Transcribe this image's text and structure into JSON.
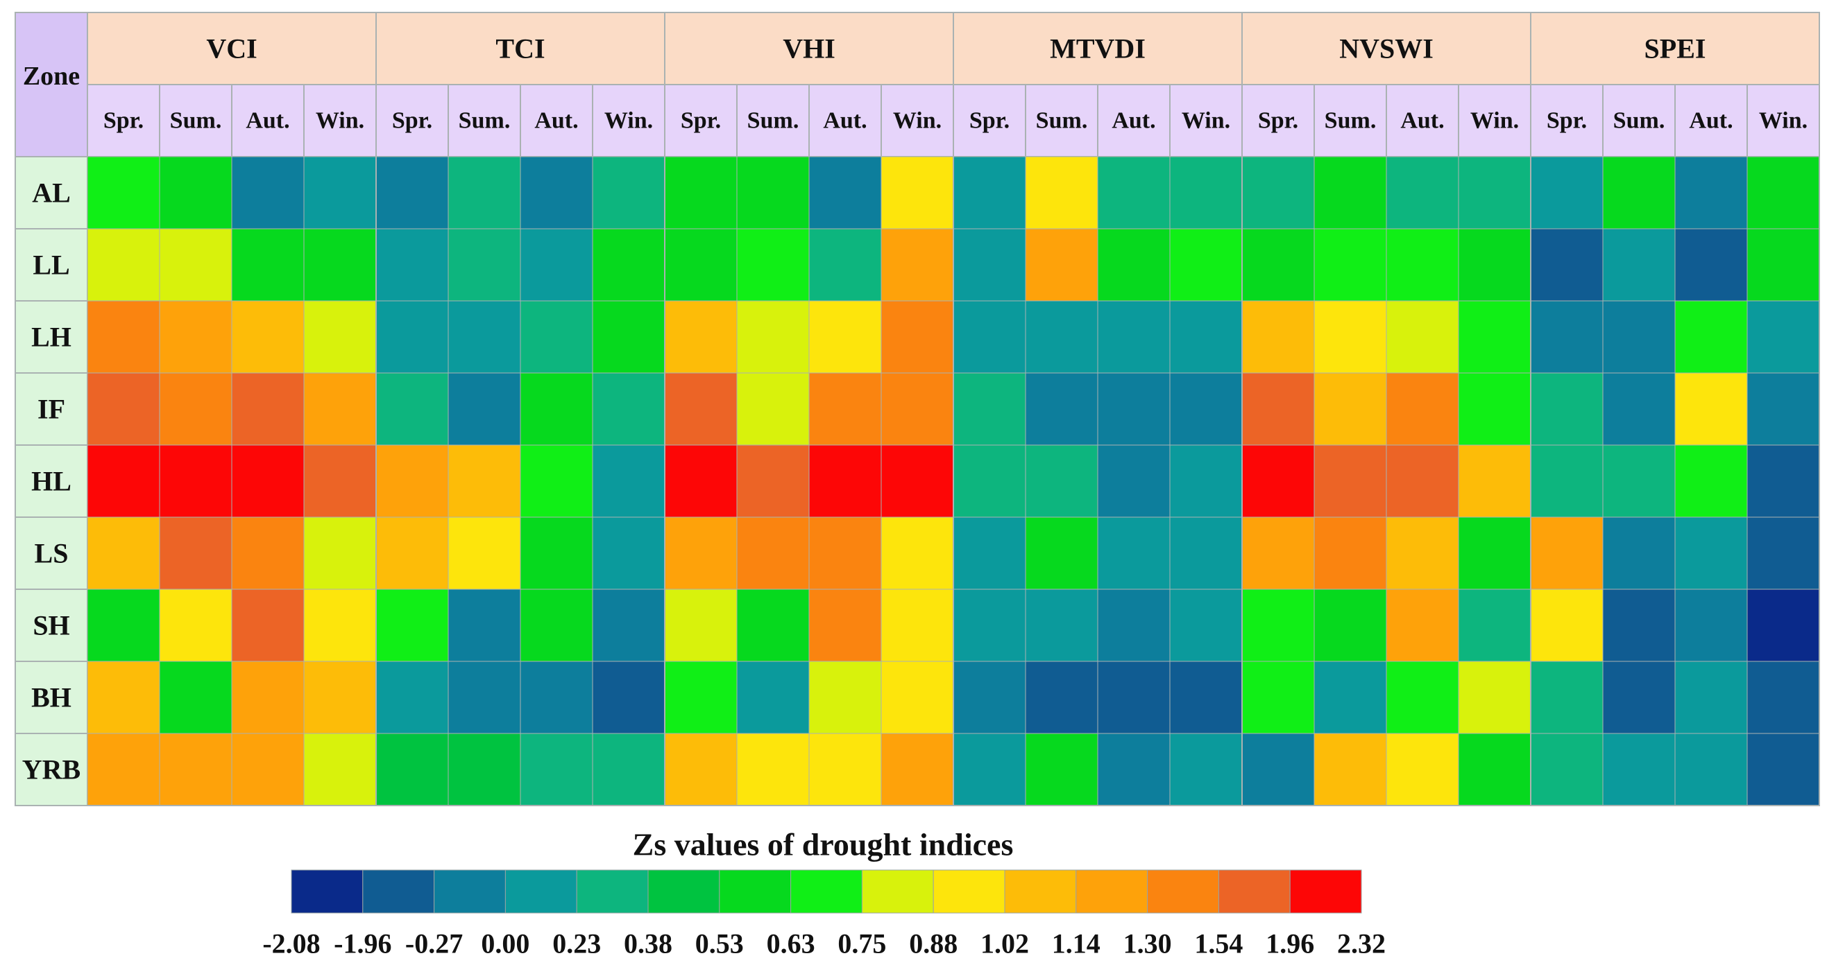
{
  "chart_data": {
    "type": "heatmap",
    "zone_header": "Zone",
    "indices": [
      "VCI",
      "TCI",
      "VHI",
      "MTVDI",
      "NVSWI",
      "SPEI"
    ],
    "seasons": [
      "Spr.",
      "Sum.",
      "Aut.",
      "Win."
    ],
    "zones": [
      "AL",
      "LL",
      "LH",
      "IF",
      "HL",
      "LS",
      "SH",
      "BH",
      "YRB"
    ],
    "values": [
      [
        7,
        6,
        2,
        3,
        2,
        4,
        2,
        4,
        6,
        6,
        2,
        9,
        3,
        9,
        4,
        4,
        4,
        6,
        4,
        4,
        3,
        6,
        2,
        6
      ],
      [
        8,
        8,
        6,
        6,
        3,
        4,
        3,
        6,
        6,
        7,
        4,
        11,
        3,
        11,
        6,
        7,
        6,
        7,
        7,
        6,
        1,
        3,
        1,
        6
      ],
      [
        12,
        11,
        10,
        8,
        3,
        3,
        4,
        6,
        10,
        8,
        9,
        12,
        3,
        3,
        3,
        3,
        10,
        9,
        8,
        7,
        2,
        2,
        7,
        3
      ],
      [
        13,
        12,
        13,
        11,
        4,
        2,
        6,
        4,
        13,
        8,
        12,
        12,
        4,
        2,
        2,
        2,
        13,
        10,
        12,
        7,
        4,
        2,
        9,
        2
      ],
      [
        14,
        14,
        14,
        13,
        11,
        10,
        7,
        3,
        14,
        13,
        14,
        14,
        4,
        4,
        2,
        3,
        14,
        13,
        13,
        10,
        4,
        4,
        7,
        1
      ],
      [
        10,
        13,
        12,
        8,
        10,
        9,
        6,
        3,
        11,
        12,
        12,
        9,
        3,
        6,
        3,
        3,
        11,
        12,
        10,
        6,
        11,
        2,
        3,
        1
      ],
      [
        6,
        9,
        13,
        9,
        7,
        2,
        6,
        2,
        8,
        6,
        12,
        9,
        3,
        3,
        2,
        3,
        7,
        6,
        11,
        4,
        9,
        1,
        2,
        0
      ],
      [
        10,
        6,
        11,
        10,
        3,
        2,
        2,
        1,
        7,
        3,
        8,
        9,
        2,
        1,
        1,
        1,
        7,
        3,
        7,
        8,
        4,
        1,
        3,
        1
      ],
      [
        11,
        11,
        11,
        8,
        5,
        5,
        4,
        4,
        10,
        9,
        9,
        11,
        3,
        6,
        2,
        3,
        2,
        10,
        9,
        6,
        4,
        3,
        3,
        1
      ]
    ],
    "legend": {
      "title": "Zs values of drought indices",
      "colors": [
        "#0a2a8a",
        "#105c92",
        "#0d7e9c",
        "#0b9a9c",
        "#0db57e",
        "#00c340",
        "#06d91e",
        "#10ef16",
        "#d8f20c",
        "#fde50c",
        "#fdbc08",
        "#fea20a",
        "#fa8410",
        "#ec6426",
        "#fd0606"
      ],
      "labels": [
        "-2.08",
        "-1.96",
        "-0.27",
        "0.00",
        "0.23",
        "0.38",
        "0.53",
        "0.63",
        "0.75",
        "0.88",
        "1.02",
        "1.14",
        "1.30",
        "1.54",
        "1.96",
        "2.32"
      ]
    },
    "header_colors": {
      "index_header_bg": "#fbdcc6",
      "season_header_bg": "#e6d4fa",
      "zone_col_bg": "#dcf6dc",
      "corner_bg": "#d7c4f6"
    }
  }
}
